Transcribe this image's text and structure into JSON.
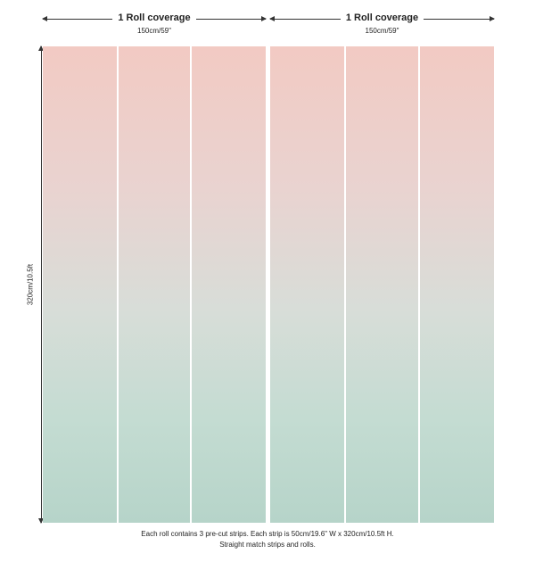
{
  "rolls": [
    {
      "title": "1 Roll coverage",
      "width_label": "150cm/59\""
    },
    {
      "title": "1 Roll coverage",
      "width_label": "150cm/59\""
    }
  ],
  "height_label": "320cm/10.5ft",
  "caption": {
    "line1": "Each roll contains 3 pre-cut strips.  Each strip is 50cm/19.6\" W x 320cm/10.5ft H.",
    "line2": "Straight match strips and rolls."
  },
  "colors": {
    "top": "#f2cac3",
    "bottom": "#b6d4c9"
  }
}
